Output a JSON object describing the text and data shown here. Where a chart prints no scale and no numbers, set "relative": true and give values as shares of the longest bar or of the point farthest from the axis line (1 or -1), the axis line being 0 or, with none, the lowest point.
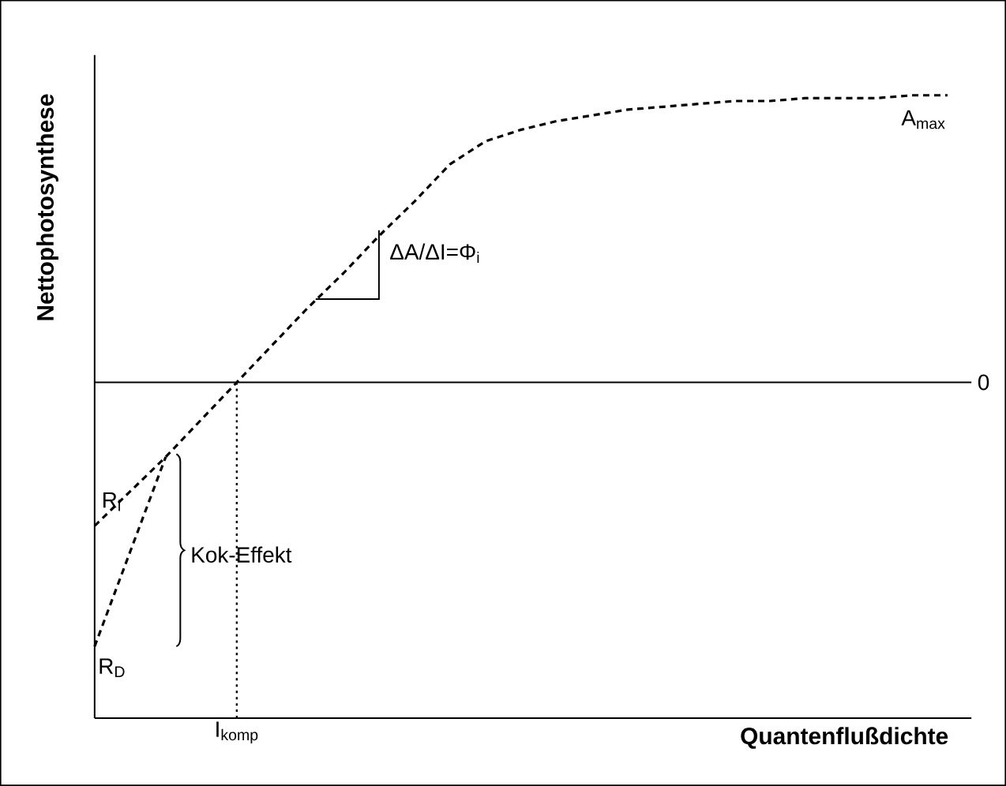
{
  "chart_data": {
    "type": "line",
    "relative": true,
    "xlabel": "Quantenflußdichte",
    "ylabel": "Nettophotosynthese",
    "categories": [
      null,
      null,
      null,
      null,
      null,
      null,
      null,
      null,
      null,
      null,
      null,
      null,
      null,
      null,
      null,
      null,
      null,
      null,
      null,
      null,
      null,
      null,
      null,
      null,
      null
    ],
    "series": [
      {
        "color": "#000000",
        "values": [
          -0.5,
          -0.38,
          -0.26,
          -0.13,
          0,
          0.13,
          0.26,
          0.38,
          0.51,
          0.63,
          0.76,
          0.84,
          0.88,
          0.91,
          0.93,
          0.95,
          0.96,
          0.97,
          0.98,
          0.98,
          0.99,
          0.99,
          0.99,
          1,
          1
        ]
      },
      {
        "color": "#000000",
        "values": [
          -0.92,
          -0.59,
          -0.26,
          null,
          null,
          null,
          null,
          null,
          null,
          null,
          null,
          null,
          null,
          null,
          null,
          null,
          null,
          null,
          null,
          null,
          null,
          null,
          null,
          null,
          null
        ]
      }
    ],
    "ref_lines": [
      {
        "axis": "y",
        "value": 0,
        "label": "0"
      }
    ],
    "annotations": [
      {
        "text": "A$_{max}$",
        "y": 1
      },
      "ΔA/ΔI=Φ$_{i}$",
      "R$_{l}$",
      "R$_{D}$",
      "Kok-Effekt",
      {
        "text": "I$_{komp}$",
        "y": 0
      }
    ],
    "line_style": "dashed",
    "marker": "none"
  }
}
